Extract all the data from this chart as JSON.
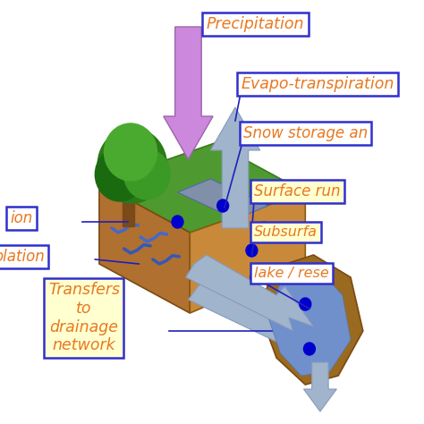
{
  "background_color": "#ffffff",
  "labels": {
    "precipitation": "Precipitation",
    "evapo": "Evapo-transpiration",
    "snow": "Snow storage an",
    "surface": "Surface run",
    "subsurface": "Subsurfa",
    "lake": "lake / rese",
    "transfers": "Transfers\nto\ndrainage\nnetwork",
    "ion": "ion",
    "polation": "olation"
  },
  "label_colors": {
    "precipitation": "#E87820",
    "evapo": "#E87820",
    "snow": "#E87820",
    "surface": "#E87820",
    "subsurface": "#E87820",
    "lake": "#E87820",
    "transfers": "#E87820",
    "ion": "#E87820",
    "polation": "#E87820"
  },
  "box_face": {
    "precipitation": "#ffffff",
    "evapo": "#ffffff",
    "snow": "#ffffff",
    "surface": "#ffffd0",
    "subsurface": "#ffffd0",
    "lake": "#ffffff",
    "transfers": "#ffffd0",
    "ion": "#ffffff",
    "polation": "#ffffff"
  },
  "box_edge": "#3030CC",
  "terrain_green": "#4E9A30",
  "terrain_brown_left": "#B07030",
  "terrain_brown_right": "#C88A3A",
  "water_channel": "#8090A8",
  "wavy_blue": "#4060B0",
  "tree_trunk": "#7A4A18",
  "tree_green1": "#2A7A18",
  "tree_green2": "#3A9A25",
  "tree_green3": "#4AAA30",
  "purple_arrow": "#CC88DD",
  "blue_arrow": "#A0B4CC",
  "blue_arrow_edge": "#8899BB",
  "dot_color": "#0000CC",
  "line_color": "#2020BB",
  "river_brown": "#9A6A20",
  "river_blue": "#7090CC"
}
